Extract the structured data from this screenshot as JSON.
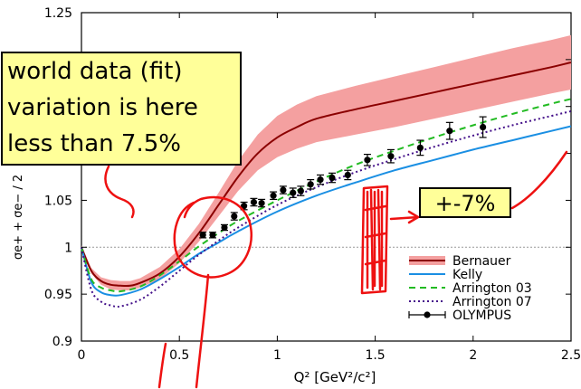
{
  "chart_data": {
    "type": "line",
    "xlabel": "Q² [GeV²/c²]",
    "ylabel": "σe+ + σe− / 2",
    "xlim": [
      0,
      2.5
    ],
    "ylim": [
      0.9,
      1.25
    ],
    "x_ticks": [
      0,
      0.5,
      1,
      1.5,
      2,
      2.5
    ],
    "x_tick_labels": [
      "0",
      "0.5",
      "1",
      "1.5",
      "2",
      "2.5"
    ],
    "y_ticks": [
      0.9,
      0.95,
      1,
      1.05,
      1.1,
      1.15,
      1.2,
      1.25
    ],
    "y_tick_labels": [
      "0.9",
      "0.95",
      "1",
      "1.05",
      "",
      "",
      "",
      "1.25"
    ],
    "reference_line": 1.0,
    "legend_position": "bottom-right",
    "series": [
      {
        "name": "Bernauer",
        "style": "solid-with-band",
        "color": "#8b0000",
        "band_color": "#f4a0a0",
        "x": [
          0,
          0.05,
          0.1,
          0.15,
          0.2,
          0.25,
          0.3,
          0.4,
          0.5,
          0.6,
          0.7,
          0.8,
          0.9,
          1.0,
          1.1,
          1.2,
          1.4,
          1.6,
          1.8,
          2.0,
          2.2,
          2.4,
          2.5
        ],
        "values": [
          1.0,
          0.975,
          0.964,
          0.96,
          0.959,
          0.959,
          0.962,
          0.972,
          0.99,
          1.015,
          1.045,
          1.075,
          1.1,
          1.117,
          1.128,
          1.137,
          1.147,
          1.156,
          1.165,
          1.174,
          1.183,
          1.192,
          1.197
        ],
        "band_low": [
          0.998,
          0.972,
          0.96,
          0.955,
          0.954,
          0.954,
          0.957,
          0.966,
          0.983,
          1.006,
          1.033,
          1.06,
          1.082,
          1.096,
          1.105,
          1.112,
          1.12,
          1.128,
          1.137,
          1.146,
          1.155,
          1.164,
          1.168
        ],
        "band_high": [
          1.002,
          0.978,
          0.968,
          0.965,
          0.964,
          0.964,
          0.967,
          0.979,
          0.998,
          1.025,
          1.058,
          1.092,
          1.12,
          1.14,
          1.152,
          1.161,
          1.172,
          1.182,
          1.192,
          1.202,
          1.212,
          1.221,
          1.226
        ]
      },
      {
        "name": "Kelly",
        "style": "solid",
        "color": "#1a8fe3",
        "x": [
          0,
          0.05,
          0.1,
          0.15,
          0.2,
          0.3,
          0.4,
          0.5,
          0.6,
          0.7,
          0.8,
          1.0,
          1.2,
          1.4,
          1.6,
          1.8,
          2.0,
          2.2,
          2.4,
          2.5
        ],
        "values": [
          1.0,
          0.963,
          0.952,
          0.949,
          0.949,
          0.955,
          0.966,
          0.979,
          0.993,
          1.005,
          1.017,
          1.038,
          1.055,
          1.069,
          1.082,
          1.093,
          1.104,
          1.114,
          1.124,
          1.129
        ]
      },
      {
        "name": "Arrington 03",
        "style": "dashed",
        "color": "#22bb22",
        "x": [
          0,
          0.05,
          0.1,
          0.15,
          0.2,
          0.3,
          0.4,
          0.5,
          0.6,
          0.7,
          0.8,
          1.0,
          1.2,
          1.4,
          1.6,
          1.8,
          2.0,
          2.2,
          2.4,
          2.5
        ],
        "values": [
          1.0,
          0.966,
          0.957,
          0.954,
          0.953,
          0.958,
          0.97,
          0.985,
          1.001,
          1.015,
          1.028,
          1.05,
          1.07,
          1.088,
          1.103,
          1.117,
          1.13,
          1.142,
          1.153,
          1.158
        ]
      },
      {
        "name": "Arrington 07",
        "style": "dotted",
        "color": "#44118a",
        "x": [
          0,
          0.05,
          0.1,
          0.15,
          0.2,
          0.3,
          0.4,
          0.5,
          0.6,
          0.7,
          0.8,
          1.0,
          1.2,
          1.4,
          1.6,
          1.8,
          2.0,
          2.2,
          2.4,
          2.5
        ],
        "values": [
          1.0,
          0.955,
          0.942,
          0.938,
          0.937,
          0.944,
          0.958,
          0.975,
          0.992,
          1.007,
          1.021,
          1.045,
          1.064,
          1.08,
          1.094,
          1.107,
          1.119,
          1.13,
          1.14,
          1.145
        ]
      },
      {
        "name": "OLYMPUS",
        "style": "points-with-errorbars",
        "color": "#000000",
        "x": [
          0.62,
          0.67,
          0.73,
          0.78,
          0.83,
          0.88,
          0.92,
          0.98,
          1.03,
          1.08,
          1.12,
          1.17,
          1.22,
          1.28,
          1.36,
          1.46,
          1.58,
          1.73,
          1.88,
          2.05
        ],
        "values": [
          1.013,
          1.013,
          1.021,
          1.033,
          1.044,
          1.048,
          1.047,
          1.055,
          1.061,
          1.058,
          1.06,
          1.067,
          1.072,
          1.074,
          1.077,
          1.093,
          1.097,
          1.106,
          1.124,
          1.128
        ],
        "errors": [
          0.003,
          0.003,
          0.003,
          0.004,
          0.004,
          0.004,
          0.004,
          0.004,
          0.004,
          0.005,
          0.005,
          0.005,
          0.005,
          0.005,
          0.005,
          0.006,
          0.007,
          0.008,
          0.009,
          0.011
        ]
      }
    ]
  },
  "annotations": {
    "callout_lines": [
      "world data (fit)",
      "variation is here",
      "less than 7.5%"
    ],
    "band_label": "+-7%"
  },
  "colors": {
    "callout_bg": "#ffff99",
    "ink": "#ee1111"
  }
}
